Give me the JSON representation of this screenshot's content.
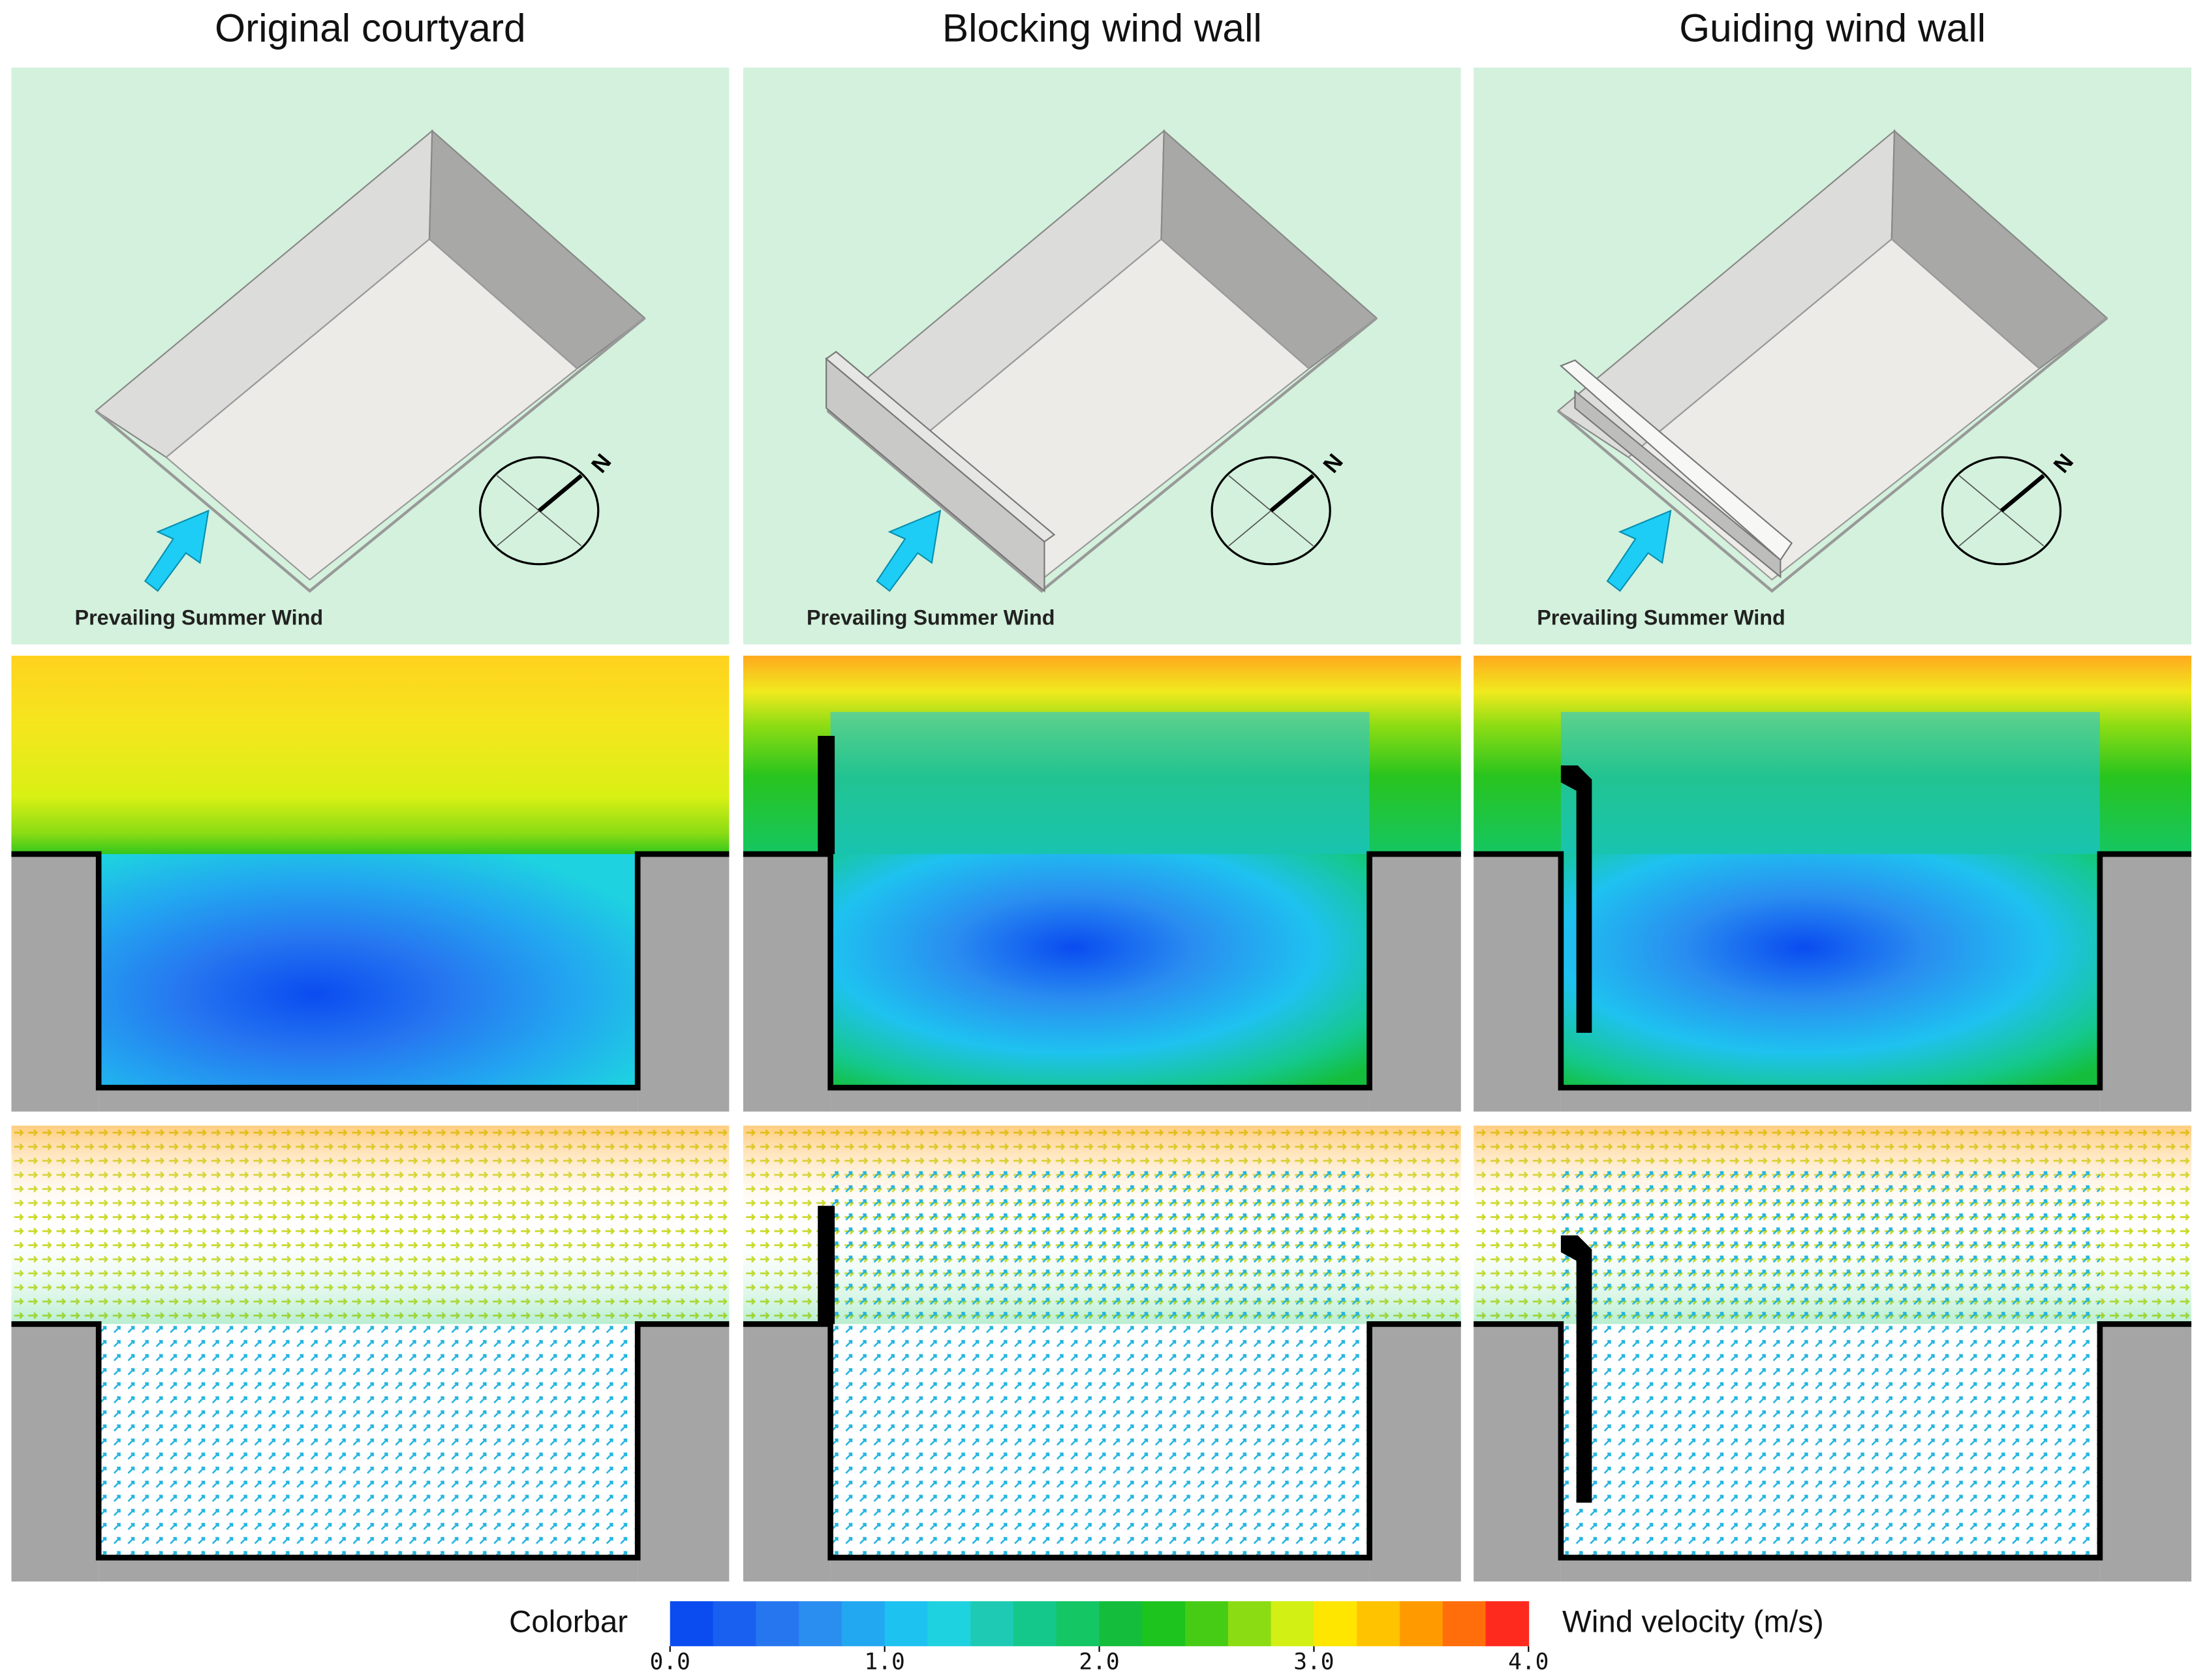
{
  "columns": [
    {
      "title": "Original courtyard",
      "wind_label": "Prevailing Summer Wind",
      "north": "N",
      "variant": "none"
    },
    {
      "title": "Blocking wind wall",
      "wind_label": "Prevailing Summer Wind",
      "north": "N",
      "variant": "blocking"
    },
    {
      "title": "Guiding wind wall",
      "wind_label": "Prevailing Summer Wind",
      "north": "N",
      "variant": "guiding"
    }
  ],
  "colorbar": {
    "label": "Colorbar",
    "title": "Wind velocity (m/s)",
    "range": [
      0,
      4
    ],
    "ticks": [
      {
        "value": 0,
        "label": "0.0"
      },
      {
        "value": 1,
        "label": "1.0"
      },
      {
        "value": 2,
        "label": "2.0"
      },
      {
        "value": 3,
        "label": "3.0"
      },
      {
        "value": 4,
        "label": "4.0"
      }
    ],
    "colors": [
      "#0a4cf0",
      "#1a60f0",
      "#2676f0",
      "#2a8ef0",
      "#22a8f0",
      "#1ec2f0",
      "#1ed2e0",
      "#1ecab4",
      "#14c88c",
      "#14c664",
      "#14be3c",
      "#1ec41e",
      "#46cc14",
      "#8cdc14",
      "#d2f014",
      "#ffe600",
      "#ffc300",
      "#ff9b00",
      "#ff6e0a",
      "#ff2a1e"
    ]
  }
}
